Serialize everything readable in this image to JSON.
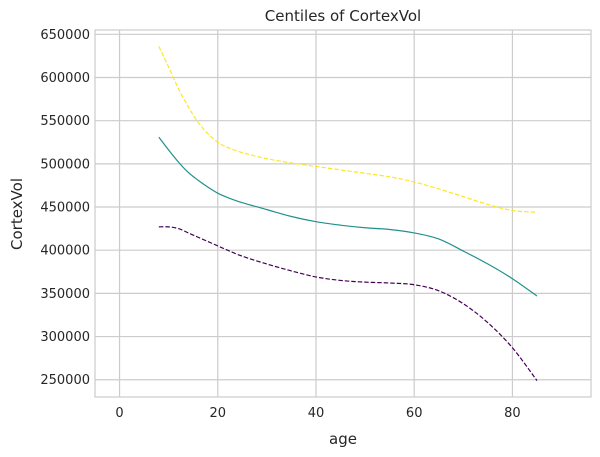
{
  "chart_data": {
    "type": "line",
    "title": "Centiles of CortexVol",
    "xlabel": "age",
    "ylabel": "CortexVol",
    "xlim": [
      -5,
      96
    ],
    "ylim": [
      230000,
      655000
    ],
    "xticks": [
      0,
      20,
      40,
      60,
      80
    ],
    "yticks": [
      250000,
      300000,
      350000,
      400000,
      450000,
      500000,
      550000,
      600000,
      650000
    ],
    "grid": true,
    "legend": "none",
    "series": [
      {
        "color": "#fde725",
        "dashed": true,
        "x": [
          8,
          10,
          12,
          14,
          16,
          18,
          20,
          22,
          25,
          30,
          35,
          40,
          45,
          50,
          55,
          60,
          65,
          70,
          75,
          80,
          85
        ],
        "y": [
          636000,
          612000,
          587000,
          566000,
          548000,
          535000,
          525000,
          519000,
          513000,
          506000,
          501000,
          497000,
          493000,
          489000,
          485000,
          479000,
          471000,
          462000,
          453000,
          446000,
          444000
        ]
      },
      {
        "color": "#21918c",
        "dashed": false,
        "x": [
          8,
          10,
          12,
          14,
          16,
          18,
          20,
          22,
          25,
          30,
          35,
          40,
          45,
          50,
          55,
          60,
          65,
          70,
          75,
          80,
          85
        ],
        "y": [
          531000,
          516000,
          502000,
          490000,
          481000,
          473000,
          466000,
          461000,
          455000,
          447000,
          439000,
          433000,
          429000,
          426000,
          424000,
          420000,
          413000,
          399000,
          384000,
          367000,
          347000
        ]
      },
      {
        "color": "#440154",
        "dashed": true,
        "x": [
          8,
          10,
          12,
          14,
          16,
          18,
          20,
          22,
          25,
          30,
          35,
          40,
          45,
          50,
          55,
          60,
          65,
          70,
          75,
          80,
          85
        ],
        "y": [
          427000,
          427000,
          425000,
          420000,
          415000,
          410000,
          405000,
          400000,
          393000,
          384000,
          376000,
          369000,
          365000,
          363000,
          362000,
          360000,
          353000,
          338000,
          316000,
          287000,
          249000
        ]
      }
    ]
  }
}
